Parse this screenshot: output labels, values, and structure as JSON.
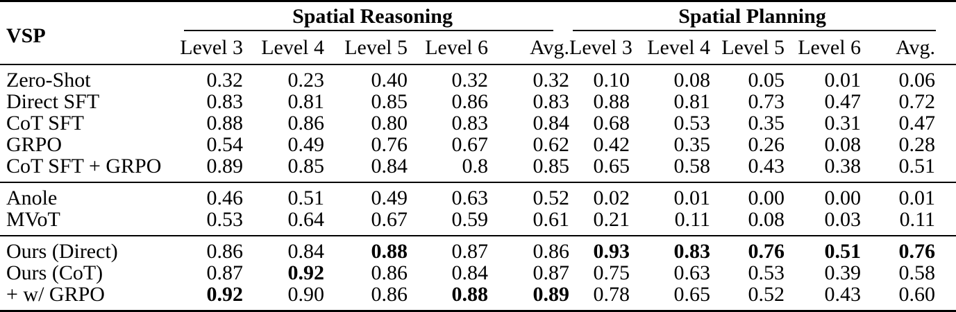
{
  "page": {
    "background": "#ffffff",
    "text_color": "#000000",
    "rule_color": "#000000"
  },
  "chart_data": {
    "type": "table",
    "title": "VSP",
    "column_groups": [
      "Spatial Reasoning",
      "Spatial Planning"
    ],
    "columns": [
      "Level 3",
      "Level 4",
      "Level 5",
      "Level 6",
      "Avg.",
      "Level 3",
      "Level 4",
      "Level 5",
      "Level 6",
      "Avg."
    ],
    "rows": [
      "Zero-Shot",
      "Direct SFT",
      "CoT SFT",
      "GRPO",
      "CoT SFT + GRPO",
      "Anole",
      "MVoT",
      "Ours (Direct)",
      "Ours (CoT)",
      "+ w/ GRPO"
    ]
  },
  "table": {
    "corner_label": "VSP",
    "groups": [
      {
        "label": "Spatial Reasoning"
      },
      {
        "label": "Spatial Planning"
      }
    ],
    "columns": [
      "Level 3",
      "Level 4",
      "Level 5",
      "Level 6",
      "Avg.",
      "Level 3",
      "Level 4",
      "Level 5",
      "Level 6",
      "Avg."
    ],
    "sections": [
      {
        "rows": [
          {
            "label": "Zero-Shot",
            "values": [
              "0.32",
              "0.23",
              "0.40",
              "0.32",
              "0.32",
              "0.10",
              "0.08",
              "0.05",
              "0.01",
              "0.06"
            ],
            "bold": []
          },
          {
            "label": "Direct SFT",
            "values": [
              "0.83",
              "0.81",
              "0.85",
              "0.86",
              "0.83",
              "0.88",
              "0.81",
              "0.73",
              "0.47",
              "0.72"
            ],
            "bold": []
          },
          {
            "label": "CoT SFT",
            "values": [
              "0.88",
              "0.86",
              "0.80",
              "0.83",
              "0.84",
              "0.68",
              "0.53",
              "0.35",
              "0.31",
              "0.47"
            ],
            "bold": []
          },
          {
            "label": "GRPO",
            "values": [
              "0.54",
              "0.49",
              "0.76",
              "0.67",
              "0.62",
              "0.42",
              "0.35",
              "0.26",
              "0.08",
              "0.28"
            ],
            "bold": []
          },
          {
            "label": "CoT SFT + GRPO",
            "values": [
              "0.89",
              "0.85",
              "0.84",
              "0.8",
              "0.85",
              "0.65",
              "0.58",
              "0.43",
              "0.38",
              "0.51"
            ],
            "bold": []
          }
        ]
      },
      {
        "rows": [
          {
            "label": "Anole",
            "values": [
              "0.46",
              "0.51",
              "0.49",
              "0.63",
              "0.52",
              "0.02",
              "0.01",
              "0.00",
              "0.00",
              "0.01"
            ],
            "bold": []
          },
          {
            "label": "MVoT",
            "values": [
              "0.53",
              "0.64",
              "0.67",
              "0.59",
              "0.61",
              "0.21",
              "0.11",
              "0.08",
              "0.03",
              "0.11"
            ],
            "bold": []
          }
        ]
      },
      {
        "rows": [
          {
            "label": "Ours (Direct)",
            "values": [
              "0.86",
              "0.84",
              "0.88",
              "0.87",
              "0.86",
              "0.93",
              "0.83",
              "0.76",
              "0.51",
              "0.76"
            ],
            "bold": [
              2,
              5,
              6,
              7,
              8,
              9
            ]
          },
          {
            "label": "Ours (CoT)",
            "values": [
              "0.87",
              "0.92",
              "0.86",
              "0.84",
              "0.87",
              "0.75",
              "0.63",
              "0.53",
              "0.39",
              "0.58"
            ],
            "bold": [
              1
            ]
          },
          {
            "label": "+ w/ GRPO",
            "values": [
              "0.92",
              "0.90",
              "0.86",
              "0.88",
              "0.89",
              "0.78",
              "0.65",
              "0.52",
              "0.43",
              "0.60"
            ],
            "bold": [
              0,
              3,
              4
            ]
          }
        ]
      }
    ]
  }
}
